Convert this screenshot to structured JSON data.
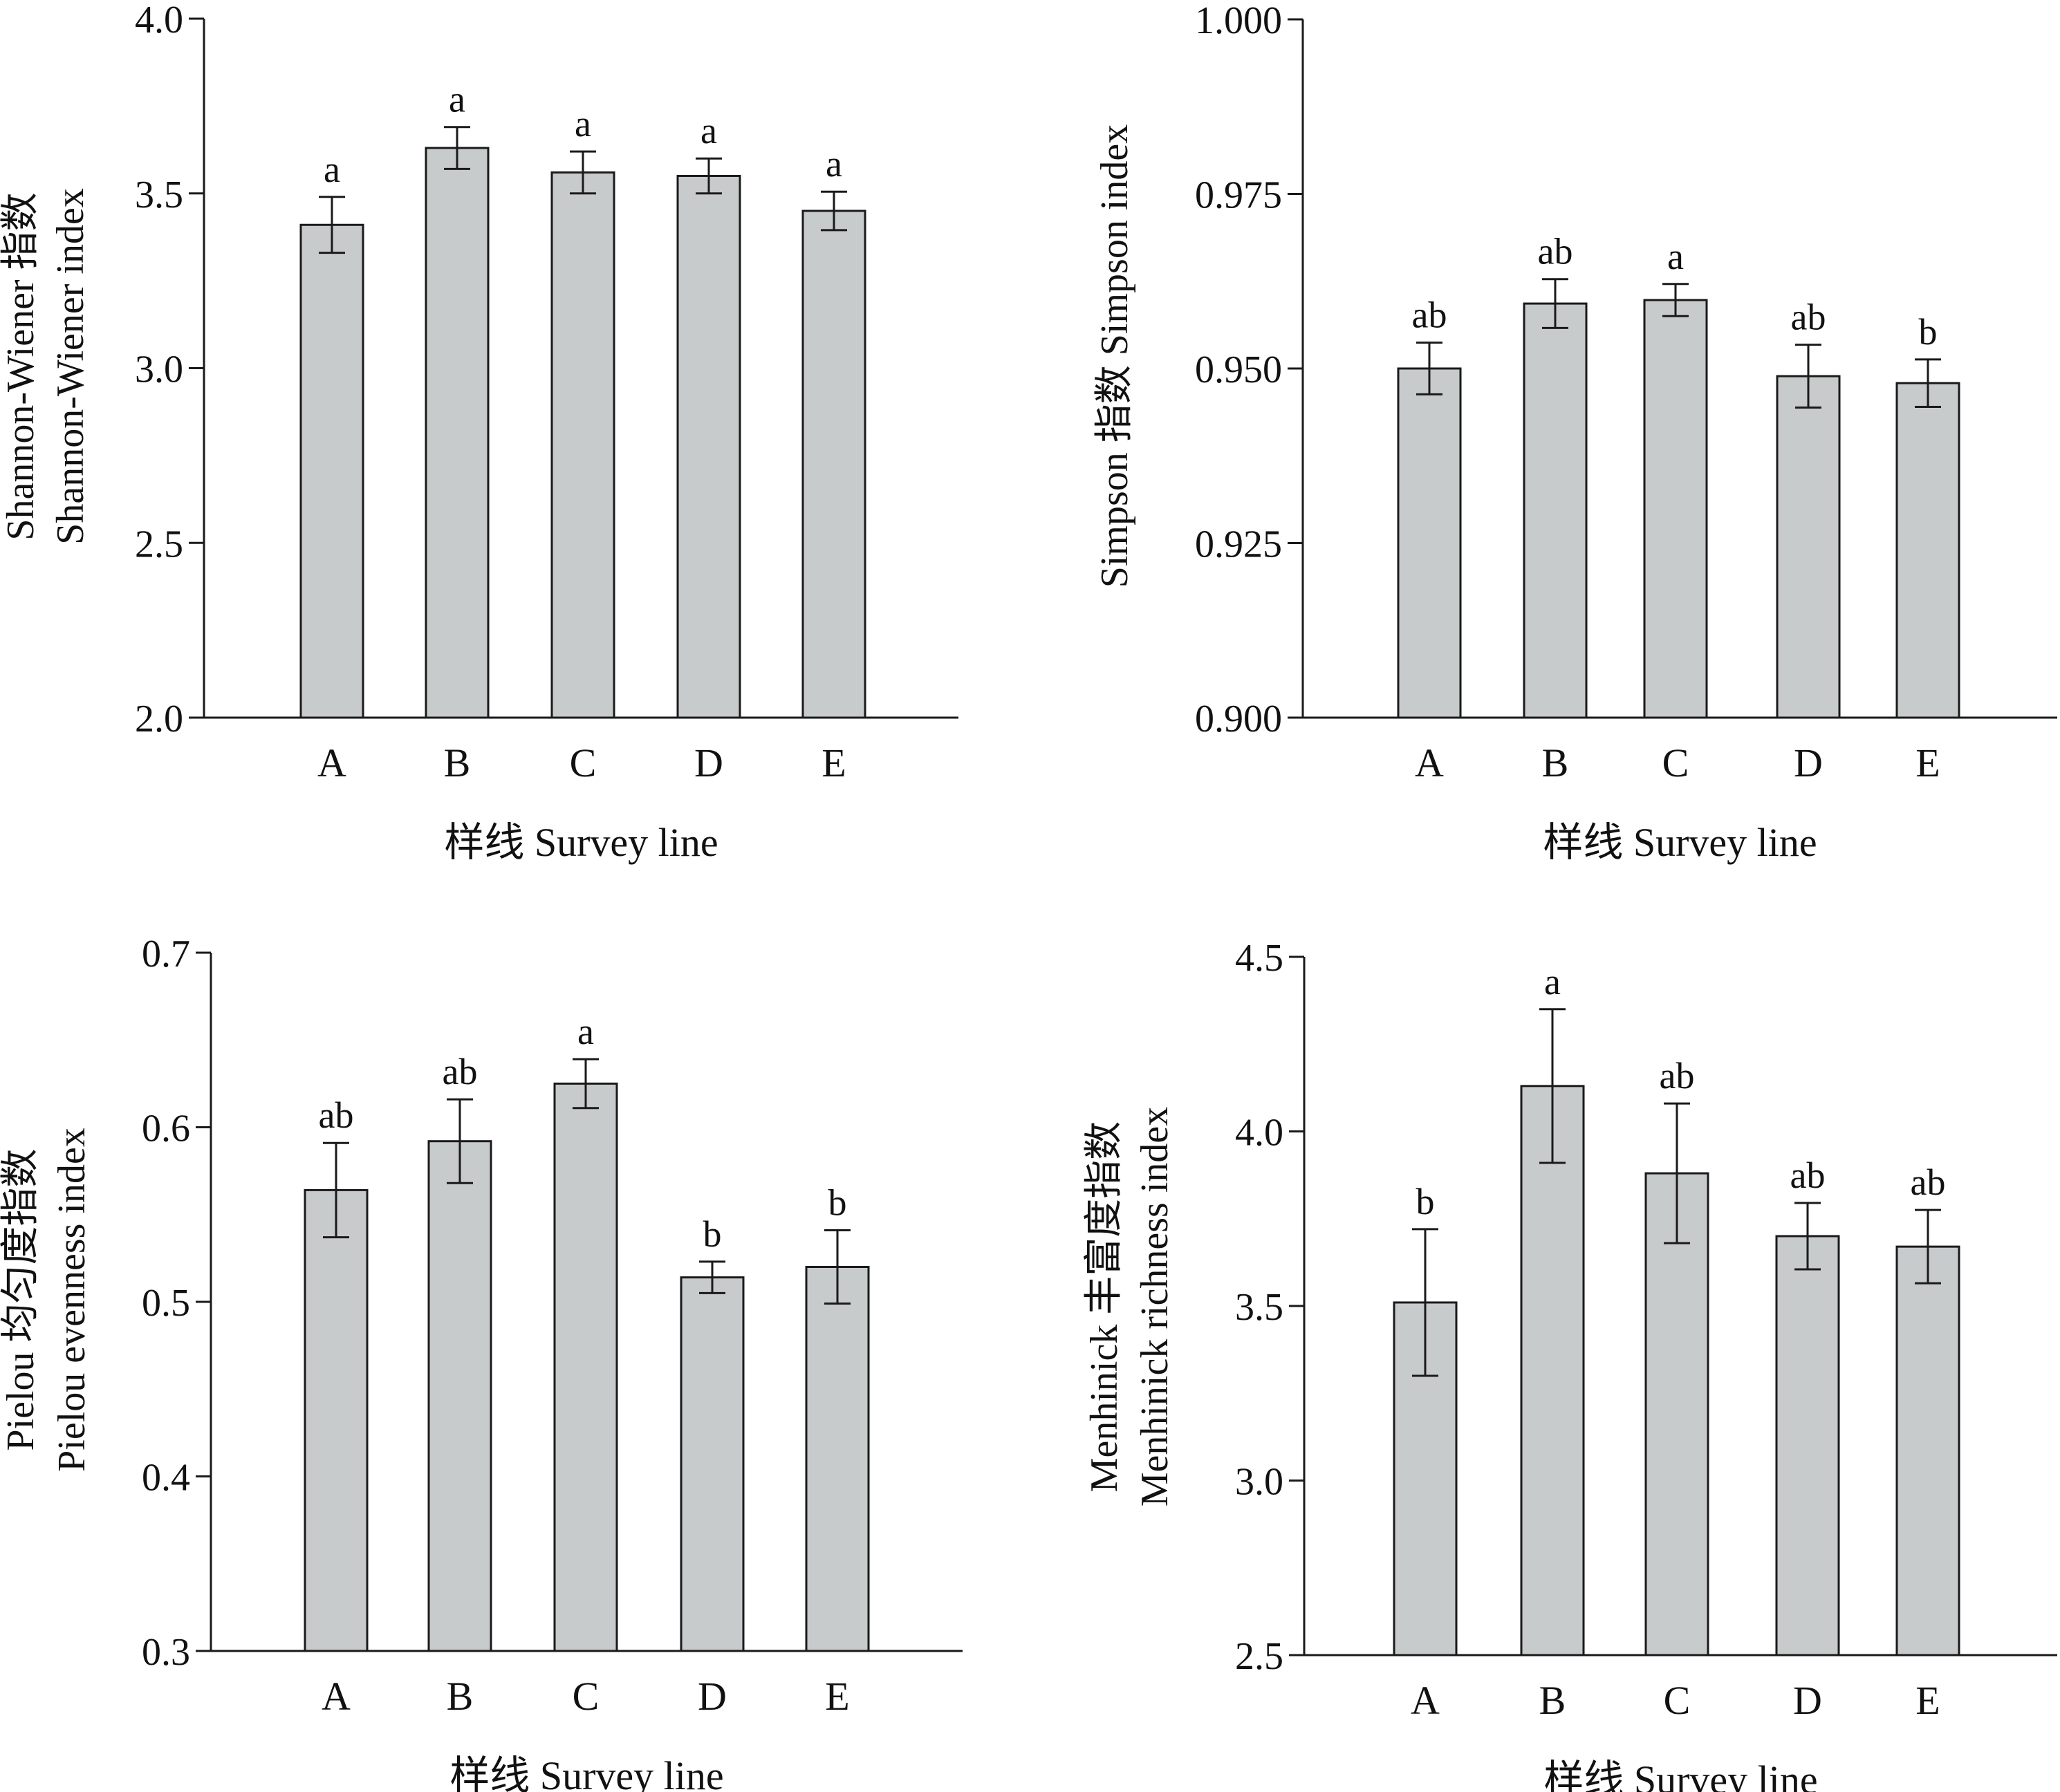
{
  "chart_data": [
    {
      "type": "bar",
      "panel": "top-left",
      "categories": [
        "A",
        "B",
        "C",
        "D",
        "E"
      ],
      "values": [
        3.41,
        3.63,
        3.56,
        3.55,
        3.45
      ],
      "errors": [
        0.08,
        0.06,
        0.06,
        0.05,
        0.055
      ],
      "significance_labels": [
        "a",
        "a",
        "a",
        "a",
        "a"
      ],
      "xlabel": "样线 Survey line",
      "ylabel_lines": [
        "Shannon-Wiener 指数",
        "Shannon-Wiener index"
      ],
      "ylim": [
        2.0,
        4.0
      ],
      "yticks": [
        2.0,
        2.5,
        3.0,
        3.5,
        4.0
      ],
      "ytick_labels": [
        "2.0",
        "2.5",
        "3.0",
        "3.5",
        "4.0"
      ],
      "grid": false
    },
    {
      "type": "bar",
      "panel": "top-right",
      "categories": [
        "A",
        "B",
        "C",
        "D",
        "E"
      ],
      "values": [
        0.95,
        0.9593,
        0.9598,
        0.9489,
        0.9479
      ],
      "errors": [
        0.0037,
        0.0035,
        0.0023,
        0.0045,
        0.0034
      ],
      "significance_labels": [
        "ab",
        "ab",
        "a",
        "ab",
        "b"
      ],
      "xlabel": "样线 Survey line",
      "ylabel_lines": [
        "Simpson 指数 Simpson index"
      ],
      "ylim": [
        0.9,
        1.0
      ],
      "yticks": [
        0.9,
        0.925,
        0.95,
        0.975,
        1.0
      ],
      "ytick_labels": [
        "0.900",
        "0.925",
        "0.950",
        "0.975",
        "1.000"
      ],
      "grid": false
    },
    {
      "type": "bar",
      "panel": "bottom-left",
      "categories": [
        "A",
        "B",
        "C",
        "D",
        "E"
      ],
      "values": [
        0.564,
        0.592,
        0.625,
        0.514,
        0.52
      ],
      "errors": [
        0.027,
        0.024,
        0.014,
        0.009,
        0.021
      ],
      "significance_labels": [
        "ab",
        "ab",
        "a",
        "b",
        "b"
      ],
      "xlabel": "样线 Survey line",
      "ylabel_lines": [
        "Pielou 均匀度指数",
        "Pielou evenness index"
      ],
      "ylim": [
        0.3,
        0.7
      ],
      "yticks": [
        0.3,
        0.4,
        0.5,
        0.6,
        0.7
      ],
      "ytick_labels": [
        "0.3",
        "0.4",
        "0.5",
        "0.6",
        "0.7"
      ],
      "grid": false
    },
    {
      "type": "bar",
      "panel": "bottom-right",
      "categories": [
        "A",
        "B",
        "C",
        "D",
        "E"
      ],
      "values": [
        3.51,
        4.13,
        3.88,
        3.7,
        3.67
      ],
      "errors": [
        0.21,
        0.22,
        0.2,
        0.095,
        0.105
      ],
      "significance_labels": [
        "b",
        "a",
        "ab",
        "ab",
        "ab"
      ],
      "xlabel": "样线 Survey line",
      "ylabel_lines": [
        "Menhinick 丰富度指数",
        "Menhinick richness index"
      ],
      "ylim": [
        2.5,
        4.5
      ],
      "yticks": [
        2.5,
        3.0,
        3.5,
        4.0,
        4.5
      ],
      "ytick_labels": [
        "2.5",
        "3.0",
        "3.5",
        "4.0",
        "4.5"
      ],
      "grid": false
    }
  ],
  "colors": {
    "bar_fill": "#c8cbcc",
    "bar_stroke": "#1a1a1a",
    "axis": "#1a1a1a",
    "text": "#111111"
  }
}
